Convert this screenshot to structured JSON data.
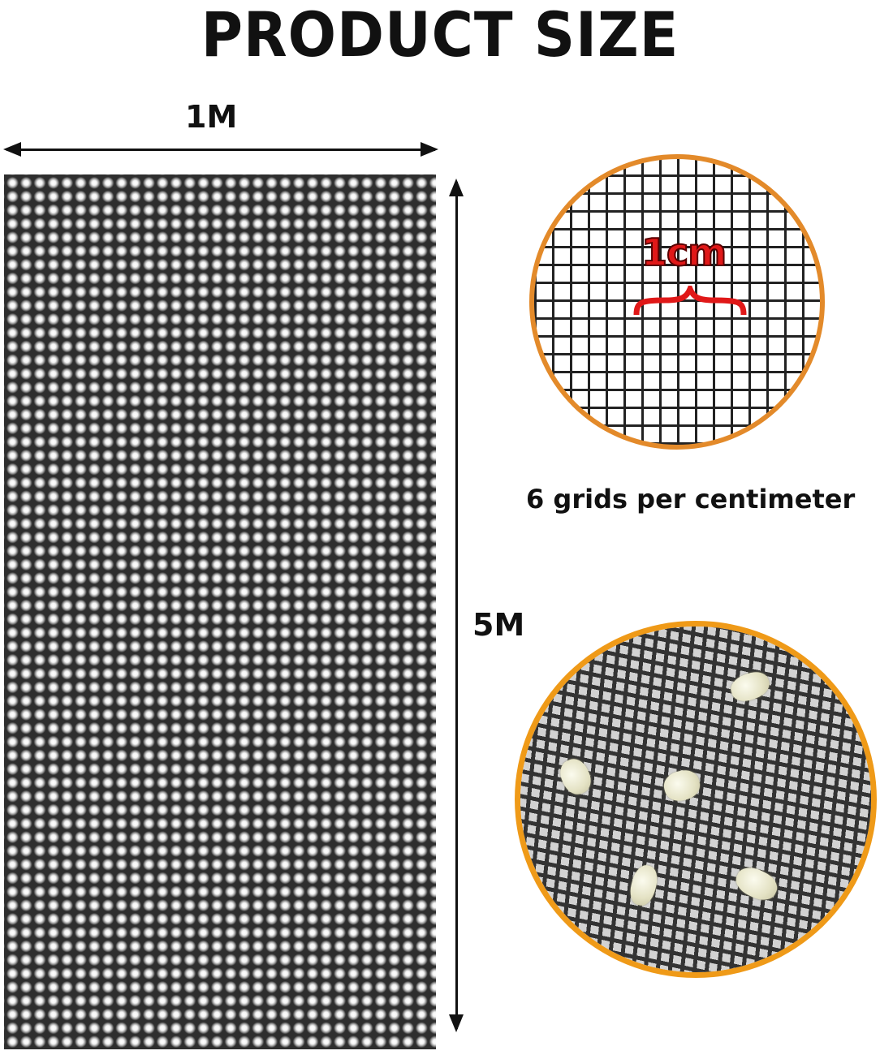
{
  "title": "PRODUCT SIZE",
  "dimensions": {
    "width": "1M",
    "height": "5M"
  },
  "detail_top": {
    "measure_label": "1cm",
    "caption": "6 grids per centimeter"
  },
  "colors": {
    "circle_border_top": "#e38a2a",
    "circle_border_bottom": "#ef9a18",
    "measure_red": "#e01818",
    "mesh": "#2e2e2e"
  }
}
